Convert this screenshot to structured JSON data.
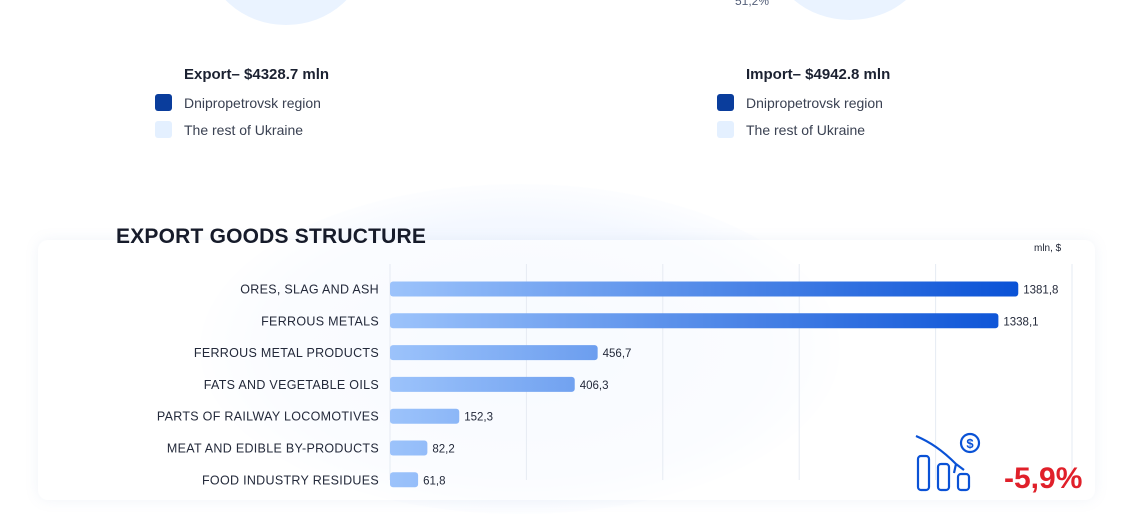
{
  "top": {
    "pie_right_pct": "51,2%",
    "export": {
      "title": "Export– $4328.7 mln",
      "items": [
        {
          "label": "Dnipropetrovsk region",
          "color": "#0a3d9c"
        },
        {
          "label": "The rest of Ukraine",
          "color": "#e4f0ff"
        }
      ]
    },
    "import": {
      "title": "Import– $4942.8 mln",
      "items": [
        {
          "label": "Dnipropetrovsk region",
          "color": "#0a3d9c"
        },
        {
          "label": "The rest of Ukraine",
          "color": "#e4f0ff"
        }
      ]
    }
  },
  "section": {
    "title": "EXPORT GOODS STRUCTURE",
    "unit": "mln, $"
  },
  "chart_data": {
    "type": "bar",
    "orientation": "horizontal",
    "categories": [
      "ORES, SLAG AND ASH",
      "FERROUS METALS",
      "FERROUS METAL PRODUCTS",
      "FATS AND VEGETABLE OILS",
      "PARTS OF RAILWAY LOCOMOTIVES",
      "MEAT AND EDIBLE BY-PRODUCTS",
      "FOOD INDUSTRY RESIDUES"
    ],
    "values": [
      1381.8,
      1338.1,
      456.7,
      406.3,
      152.3,
      82.2,
      61.8
    ],
    "value_labels": [
      "1381,8",
      "1338,1",
      "456,7",
      "406,3",
      "152,3",
      "82,2",
      "61,8"
    ],
    "xlim": [
      0,
      1500
    ],
    "grid": "vertical",
    "colors": {
      "bar_start": "#9cc3fb",
      "bar_end": "#0a52d6",
      "grid": "#e6ebf3"
    }
  },
  "badge": {
    "icon": "declining-revenue-icon",
    "percent": "-5,9%",
    "color": "#e0202a"
  }
}
